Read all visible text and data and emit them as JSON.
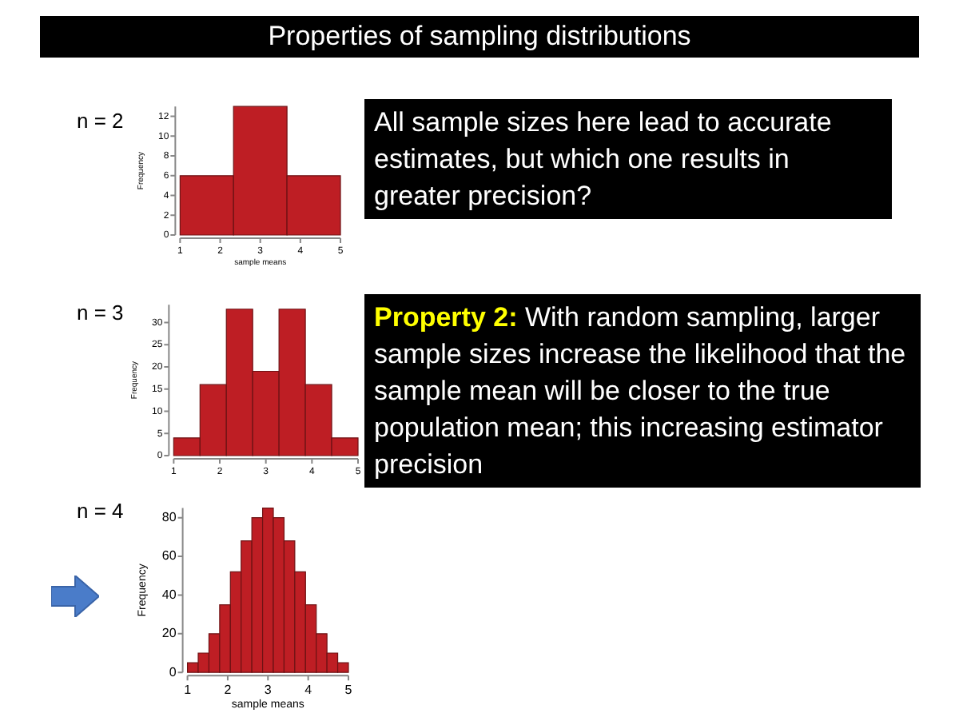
{
  "chart_data": [
    {
      "type": "histogram",
      "title": "Properties of sampling distributions",
      "subtitle": "n = 2",
      "xlabel": "sample means",
      "ylabel": "Frequency",
      "bins": [
        1,
        2.3333,
        3.6667,
        5
      ],
      "values": [
        6,
        13,
        6
      ],
      "color": "#be1e24",
      "xlim": [
        1,
        5
      ],
      "xticks": [
        1,
        2,
        3,
        4,
        5
      ],
      "ylim": [
        0,
        13
      ],
      "yticks": [
        0,
        2,
        4,
        6,
        8,
        10,
        12
      ],
      "grid": false,
      "legend": false,
      "annotations": [
        "All sample sizes here lead to accurate estimates, but which one results in greater precision?"
      ]
    },
    {
      "type": "histogram",
      "subtitle": "n = 3",
      "ylabel": "Frequency",
      "bins": [
        1,
        1.5714,
        2.1429,
        2.7143,
        3.2857,
        3.8571,
        4.4286,
        5
      ],
      "values": [
        4,
        16,
        33,
        19,
        33,
        16,
        4
      ],
      "color": "#be1e24",
      "xlim": [
        1,
        5
      ],
      "xticks": [
        1,
        2,
        3,
        4,
        5
      ],
      "ylim": [
        0,
        34
      ],
      "yticks": [
        0,
        5,
        10,
        15,
        20,
        25,
        30
      ],
      "grid": false,
      "legend": false,
      "annotations": [
        "Property 2:",
        "With random sampling, larger sample sizes increase the likelihood that the sample mean will be closer to the true population mean; this increasing estimator precision"
      ]
    },
    {
      "type": "histogram",
      "subtitle": "n = 4",
      "xlabel": "sample means",
      "ylabel": "Frequency",
      "bins": [
        1,
        1.2667,
        1.5333,
        1.8,
        2.0667,
        2.3333,
        2.6,
        2.8667,
        3.1333,
        3.4,
        3.6667,
        3.9333,
        4.2,
        4.4667,
        4.7333,
        5
      ],
      "values": [
        5,
        10,
        20,
        35,
        52,
        68,
        80,
        85,
        80,
        68,
        52,
        35,
        20,
        10,
        5
      ],
      "color": "#be1e24",
      "xlim": [
        1,
        5
      ],
      "xticks": [
        1,
        2,
        3,
        4,
        5
      ],
      "ylim": [
        0,
        85
      ],
      "yticks": [
        0,
        20,
        40,
        60,
        80
      ],
      "grid": false,
      "legend": false
    }
  ]
}
